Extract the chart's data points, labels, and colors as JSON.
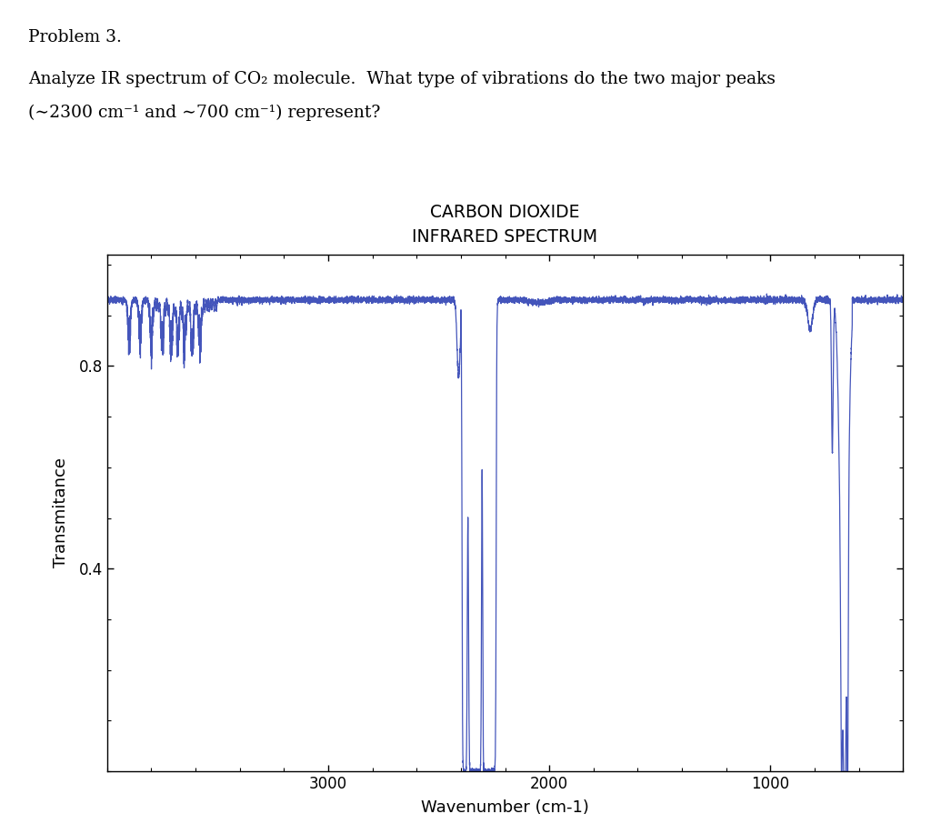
{
  "title_line1": "CARBON DIOXIDE",
  "title_line2": "INFRARED SPECTRUM",
  "xlabel": "Wavenumber (cm-1)",
  "ylabel": "Transmitance",
  "xlim": [
    4000,
    400
  ],
  "ylim": [
    0.0,
    1.02
  ],
  "yticks": [
    0.4,
    0.8
  ],
  "line_color": "#4455bb",
  "background_color": "#ffffff",
  "plot_bg": "#ffffff",
  "problem_text_line1": "Problem 3.",
  "problem_text_line2": "Analyze IR spectrum of CO₂ molecule.  What type of vibrations do the two major peaks",
  "problem_text_line3": "(∼2300 cm⁻¹ and ∼700 cm⁻¹) represent?"
}
